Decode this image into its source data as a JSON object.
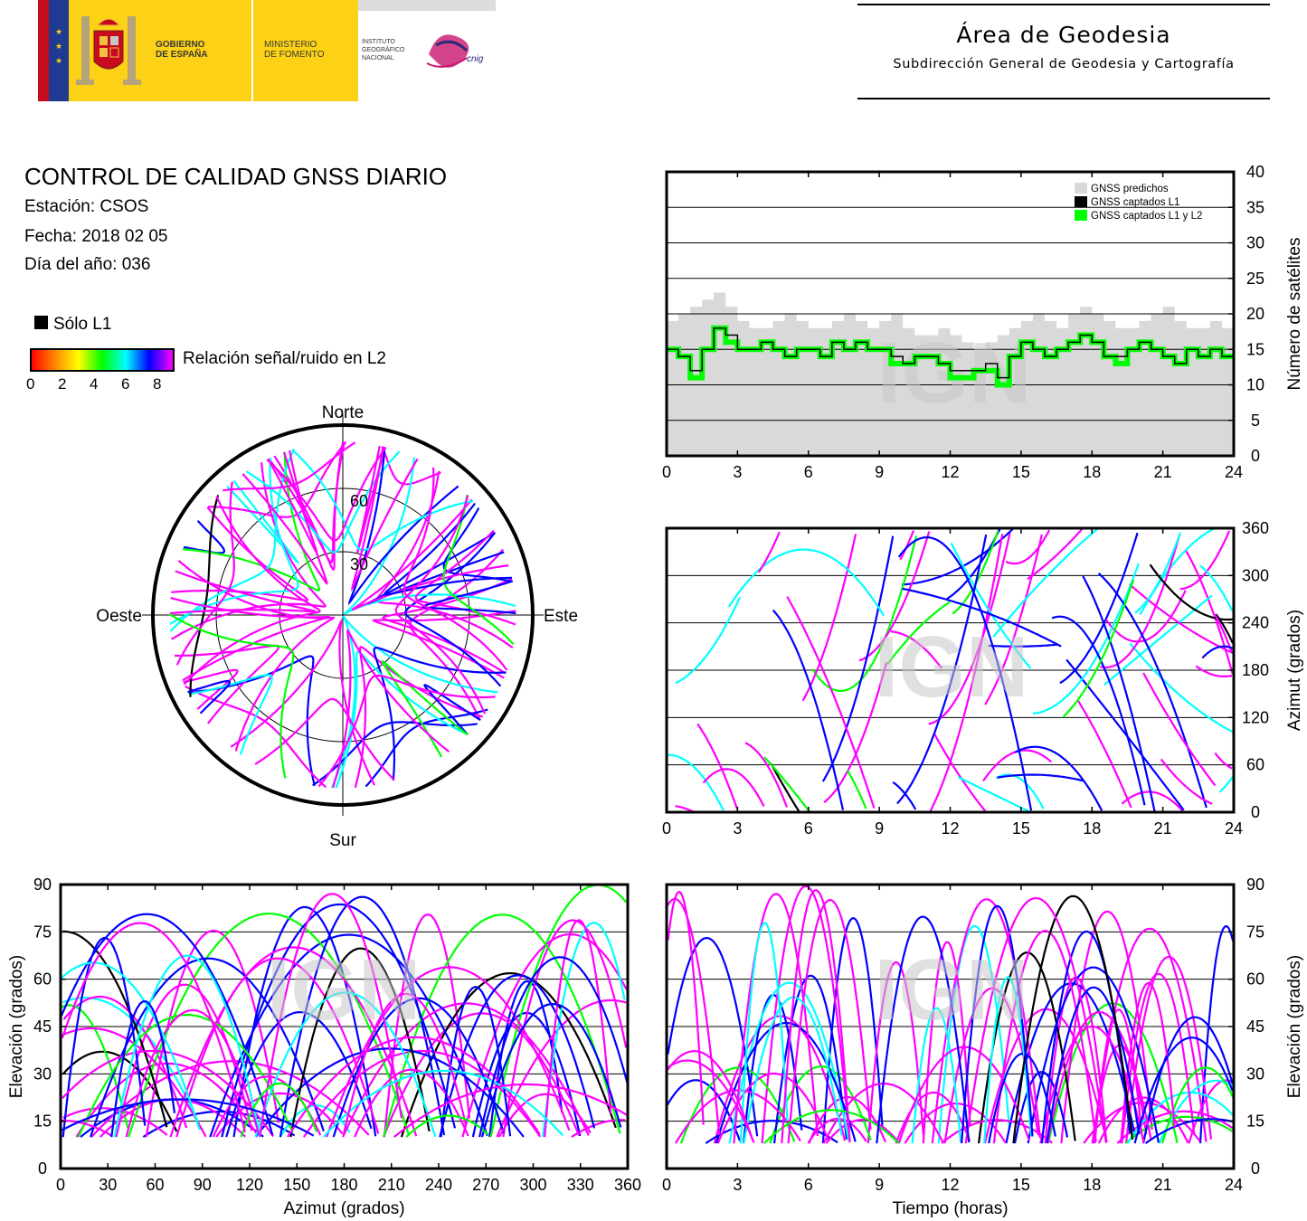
{
  "header": {
    "gov_label": "GOBIERNO\nDE ESPAÑA",
    "ministry_label": "MINISTERIO\nDE FOMENTO",
    "institute_label": "INSTITUTO\nGEOGRÁFICO\nNACIONAL",
    "cnig_label": "cnig",
    "area_title": "Área de Geodesia",
    "area_subtitle": "Subdirección General de Geodesia y Cartografía"
  },
  "report": {
    "title": "CONTROL DE CALIDAD GNSS DIARIO",
    "station": "Estación: CSOS",
    "date": "Fecha: 2018 02 05",
    "doy": "Día del año: 036"
  },
  "legend": {
    "l1_only": "Sólo L1",
    "snr_label": "Relación señal/ruido en L2",
    "snr_ticks": [
      "0",
      "2",
      "4",
      "6",
      "8"
    ]
  },
  "colors": {
    "snr_scale": [
      "#ff0000",
      "#ff8800",
      "#ffff00",
      "#00ff00",
      "#00ffff",
      "#0000ff",
      "#ff00ff"
    ],
    "predicted": "#d9d9d9",
    "tracked_l1": "#000000",
    "tracked_l1l2": "#00ff00",
    "watermark": "#c8c8c8"
  },
  "watermark": "IGN",
  "chart_data": [
    {
      "id": "skyplot",
      "type": "scatter",
      "projection": "polar",
      "cardinals": {
        "north": "Norte",
        "south": "Sur",
        "east": "Este",
        "west": "Oeste"
      },
      "ring_labels": [
        "30",
        "60"
      ],
      "ring_elevations": [
        60,
        30
      ],
      "note_tracks": "satellite arcs, elevation 5-90°, mostly south/east/west",
      "tracks_count": 60
    },
    {
      "id": "satellites",
      "type": "area",
      "title": "",
      "xlabel": "",
      "ylabel": "Número de satélites",
      "xlim": [
        0,
        24
      ],
      "ylim": [
        0,
        40
      ],
      "xticks": [
        "0",
        "3",
        "6",
        "9",
        "12",
        "15",
        "18",
        "21",
        "24"
      ],
      "yticks": [
        "0",
        "5",
        "10",
        "15",
        "20",
        "25",
        "30",
        "35",
        "40"
      ],
      "legend_position": "top-right",
      "legend": [
        "GNSS predichos",
        "GNSS captados L1",
        "GNSS captados L1 y L2"
      ],
      "x": [
        0,
        0.5,
        1,
        1.5,
        2,
        2.5,
        3,
        3.5,
        4,
        4.5,
        5,
        5.5,
        6,
        6.5,
        7,
        7.5,
        8,
        8.5,
        9,
        9.5,
        10,
        10.5,
        11,
        11.5,
        12,
        12.5,
        13,
        13.5,
        14,
        14.5,
        15,
        15.5,
        16,
        16.5,
        17,
        17.5,
        18,
        18.5,
        19,
        19.5,
        20,
        20.5,
        21,
        21.5,
        22,
        22.5,
        23,
        23.5,
        24
      ],
      "series": [
        {
          "name": "GNSS predichos",
          "values": [
            19,
            20,
            21,
            22,
            23,
            21,
            19,
            18,
            18,
            19,
            20,
            19,
            18,
            18,
            19,
            20,
            19,
            18,
            19,
            20,
            18,
            17,
            17,
            18,
            17,
            16,
            15,
            16,
            17,
            18,
            19,
            20,
            19,
            18,
            20,
            21,
            20,
            19,
            18,
            18,
            19,
            20,
            21,
            19,
            18,
            18,
            19,
            18,
            18
          ]
        },
        {
          "name": "GNSS captados L1",
          "values": [
            15,
            14,
            12,
            15,
            18,
            17,
            15,
            15,
            16,
            15,
            14,
            15,
            15,
            14,
            16,
            15,
            16,
            15,
            15,
            14,
            13,
            14,
            14,
            13,
            12,
            12,
            12,
            13,
            11,
            14,
            16,
            15,
            14,
            15,
            16,
            17,
            16,
            14,
            14,
            15,
            16,
            15,
            14,
            13,
            15,
            14,
            15,
            14,
            14
          ]
        },
        {
          "name": "GNSS captados L1 y L2",
          "values": [
            15,
            14,
            11,
            15,
            18,
            16,
            15,
            15,
            16,
            15,
            14,
            15,
            15,
            14,
            16,
            15,
            16,
            15,
            15,
            13,
            13,
            14,
            14,
            13,
            11,
            11,
            12,
            12,
            10,
            14,
            16,
            15,
            14,
            15,
            16,
            17,
            16,
            14,
            13,
            15,
            16,
            15,
            14,
            13,
            15,
            14,
            15,
            14,
            14
          ]
        }
      ]
    },
    {
      "id": "azimuth-time",
      "type": "scatter",
      "xlabel": "",
      "ylabel": "Azimut (grados)",
      "xlim": [
        0,
        24
      ],
      "ylim": [
        0,
        360
      ],
      "xticks": [
        "0",
        "3",
        "6",
        "9",
        "12",
        "15",
        "18",
        "21",
        "24"
      ],
      "yticks": [
        "0",
        "60",
        "120",
        "180",
        "240",
        "300",
        "360"
      ],
      "grid": true
    },
    {
      "id": "elev-azimuth",
      "type": "scatter",
      "xlabel": "Azimut (grados)",
      "ylabel": "Elevación (grados)",
      "xlim": [
        0,
        360
      ],
      "ylim": [
        0,
        90
      ],
      "xticks": [
        "0",
        "30",
        "60",
        "90",
        "120",
        "150",
        "180",
        "210",
        "240",
        "270",
        "300",
        "330",
        "360"
      ],
      "yticks": [
        "0",
        "15",
        "30",
        "45",
        "60",
        "75",
        "90"
      ],
      "grid": true
    },
    {
      "id": "elev-time",
      "type": "scatter",
      "xlabel": "Tiempo (horas)",
      "ylabel": "Elevación (grados)",
      "xlim": [
        0,
        24
      ],
      "ylim": [
        0,
        90
      ],
      "xticks": [
        "0",
        "3",
        "6",
        "9",
        "12",
        "15",
        "18",
        "21",
        "24"
      ],
      "yticks": [
        "0",
        "15",
        "30",
        "45",
        "60",
        "75",
        "90"
      ],
      "grid": true
    }
  ]
}
